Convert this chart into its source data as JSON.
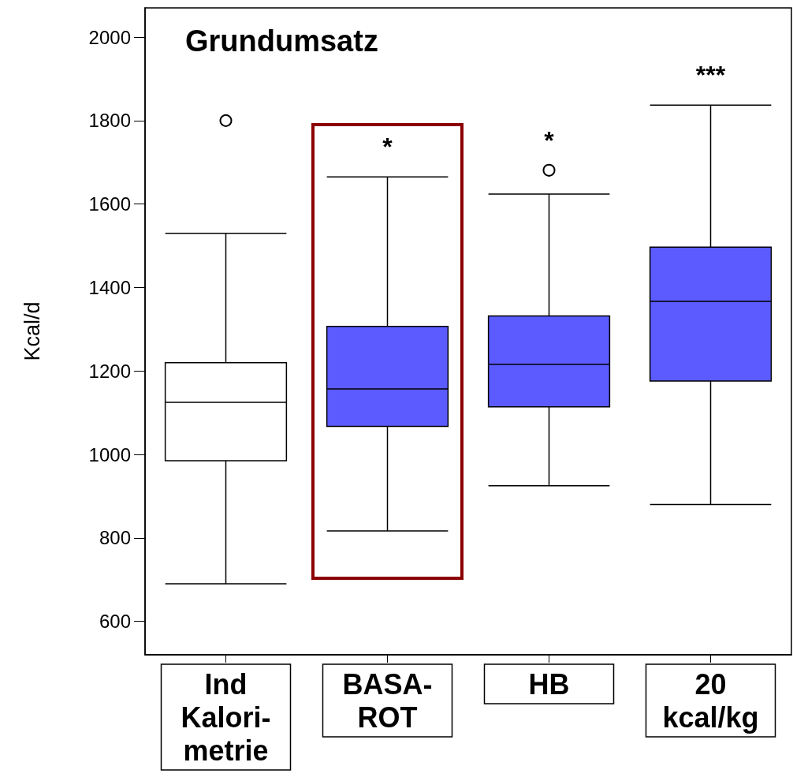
{
  "chart_data": {
    "type": "box",
    "title": "Grundumsatz",
    "ylabel": "Kcal/d",
    "categories": [
      "Ind Kalori-metrie",
      "BASA-ROT",
      "HB",
      "20 kcal/kg"
    ],
    "colors": [
      "#ffffff",
      "#5b5bff",
      "#5b5bff",
      "#5b5bff"
    ],
    "boxes": [
      {
        "low": 690,
        "q1": 985,
        "median": 1125,
        "q3": 1220,
        "high": 1530,
        "outliers": [
          1800
        ]
      },
      {
        "low": 817,
        "q1": 1067,
        "median": 1157,
        "q3": 1307,
        "high": 1665
      },
      {
        "low": 925,
        "q1": 1114,
        "median": 1216,
        "q3": 1332,
        "high": 1624,
        "outliers": [
          1681
        ]
      },
      {
        "low": 880,
        "q1": 1176,
        "median": 1367,
        "q3": 1497,
        "high": 1837
      }
    ],
    "ylim": [
      520,
      2070
    ],
    "yticks": [
      600,
      800,
      1000,
      1200,
      1400,
      1600,
      1800,
      2000
    ],
    "grid": false,
    "annotations": [
      "*",
      "*",
      "***"
    ]
  }
}
